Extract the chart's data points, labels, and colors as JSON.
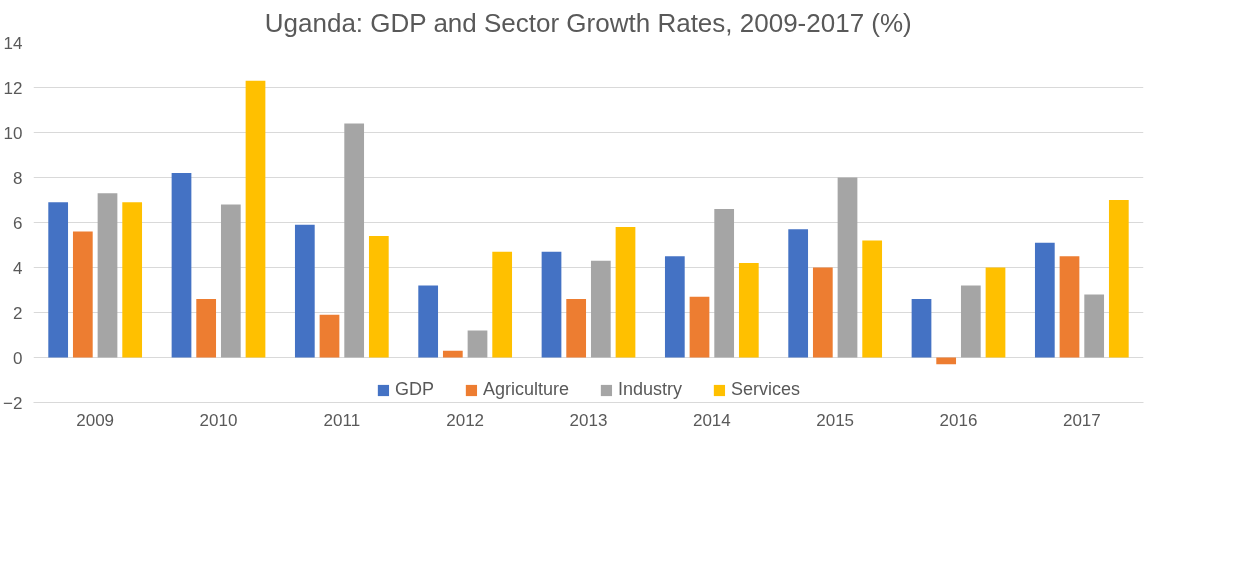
{
  "chart_data": {
    "type": "bar",
    "title": "Uganda: GDP and Sector Growth Rates, 2009-2017 (%)",
    "categories": [
      "2009",
      "2010",
      "2011",
      "2012",
      "2013",
      "2014",
      "2015",
      "2016",
      "2017"
    ],
    "series": [
      {
        "name": "GDP",
        "color": "#4472c4",
        "values": [
          6.9,
          8.2,
          5.9,
          3.2,
          4.7,
          4.5,
          5.7,
          2.6,
          5.1
        ]
      },
      {
        "name": "Agriculture",
        "color": "#ed7d31",
        "values": [
          5.6,
          2.6,
          1.9,
          0.3,
          2.6,
          2.7,
          4.0,
          -0.3,
          4.5
        ]
      },
      {
        "name": "Industry",
        "color": "#a5a5a5",
        "values": [
          7.3,
          6.8,
          10.4,
          1.2,
          4.3,
          6.6,
          8.0,
          3.2,
          2.8
        ]
      },
      {
        "name": "Services",
        "color": "#ffc000",
        "values": [
          6.9,
          12.3,
          5.4,
          4.7,
          5.8,
          4.2,
          5.2,
          4.0,
          7.0
        ]
      }
    ],
    "ylim": [
      -2,
      14
    ],
    "yticks": [
      -2,
      0,
      2,
      4,
      6,
      8,
      10,
      12,
      14
    ],
    "grid": "y",
    "legend": "bottom"
  }
}
